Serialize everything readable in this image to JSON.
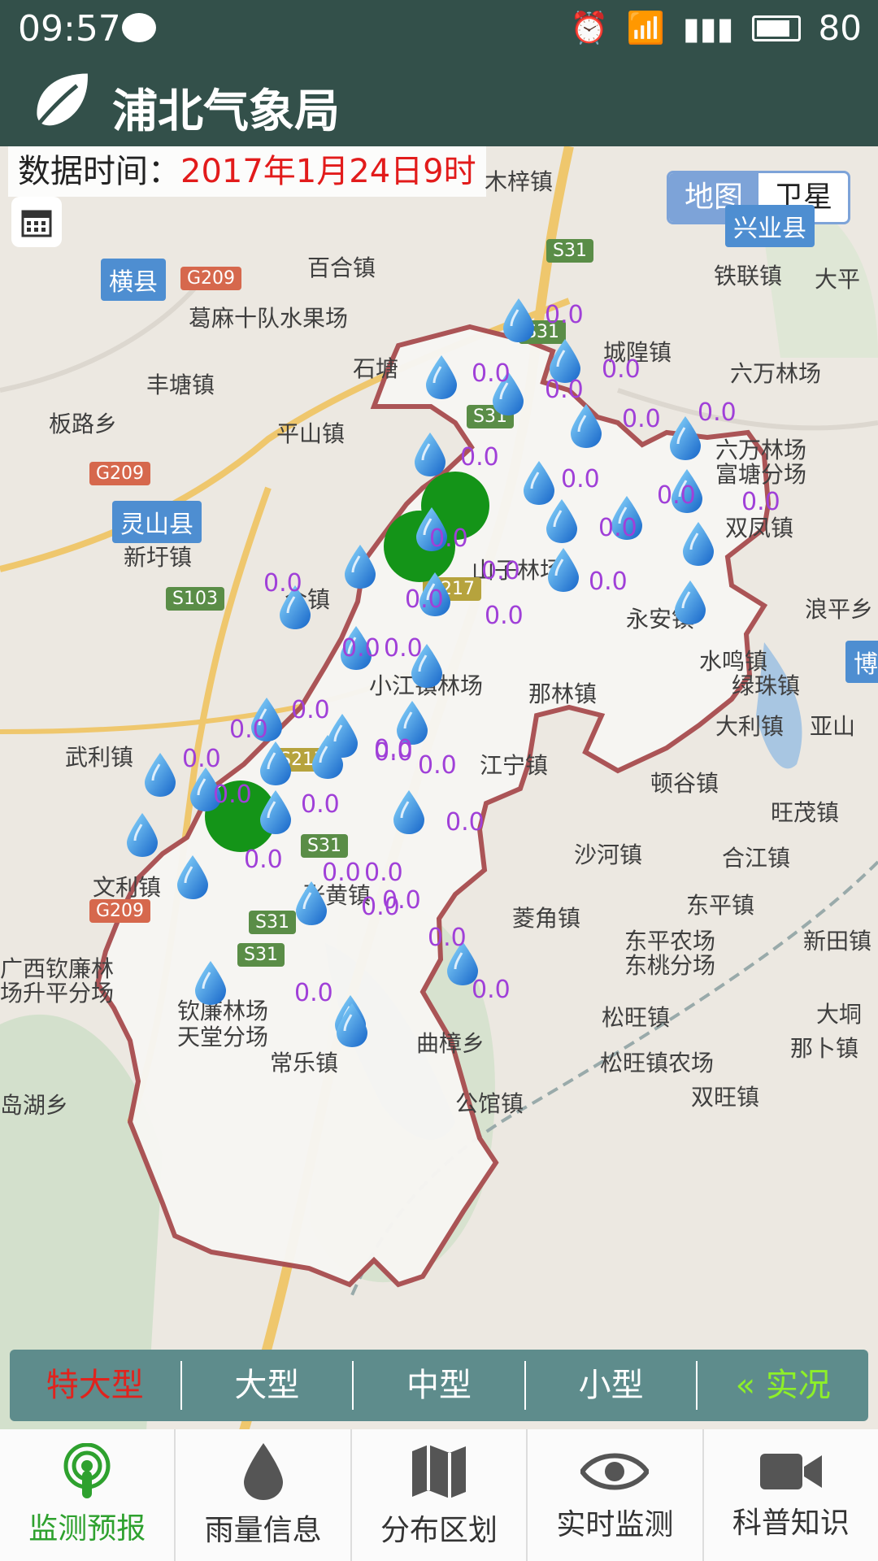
{
  "status_bar": {
    "time": "09:57",
    "battery": "80"
  },
  "app": {
    "title": "浦北气象局"
  },
  "data_time": {
    "label": "数据时间：",
    "value": "2017年1月24日9时"
  },
  "map_type": {
    "map": "地图",
    "satellite": "卫星"
  },
  "place_names": [
    "木梓镇",
    "兴业县",
    "百合镇",
    "铁联镇",
    "大平",
    "横县",
    "葛麻十队水果场",
    "城隍镇",
    "六万林场",
    "石塘",
    "丰塘镇",
    "板路乡",
    "平山镇",
    "六万林场",
    "富塘分场",
    "灵山县",
    "新圩镇",
    "双凤镇",
    "山子林场",
    "浪平乡",
    "合镇",
    "永安镇",
    "水鸣镇",
    "博",
    "那林镇",
    "小江镇林场",
    "绿珠镇",
    "大利镇",
    "亚山",
    "武利镇",
    "江宁镇",
    "顿谷镇",
    "旺茂镇",
    "沙河镇",
    "合江镇",
    "文利镇",
    "张黄镇",
    "菱角镇",
    "东平镇",
    "东平农场",
    "东桃分场",
    "新田镇",
    "广西钦廉林",
    "场升平分场",
    "钦廉林场",
    "天堂分场",
    "常乐镇",
    "曲樟乡",
    "松旺镇",
    "大垌",
    "那卜镇",
    "松旺镇农场",
    "双旺镇",
    "岛湖乡",
    "公馆镇"
  ],
  "road_labels": [
    "S31",
    "G209",
    "S31",
    "S31",
    "G209",
    "S103",
    "S217",
    "S217",
    "S31",
    "G209",
    "S31",
    "S31"
  ],
  "rain_value": "0.0",
  "filters": [
    "特大型",
    "大型",
    "中型",
    "小型",
    "« 实况"
  ],
  "nav": [
    {
      "label": "监测预报",
      "icon": "broadcast-icon"
    },
    {
      "label": "雨量信息",
      "icon": "raindrop-icon"
    },
    {
      "label": "分布区划",
      "icon": "map-icon"
    },
    {
      "label": "实时监测",
      "icon": "eye-icon"
    },
    {
      "label": "科普知识",
      "icon": "video-camera-icon"
    }
  ]
}
